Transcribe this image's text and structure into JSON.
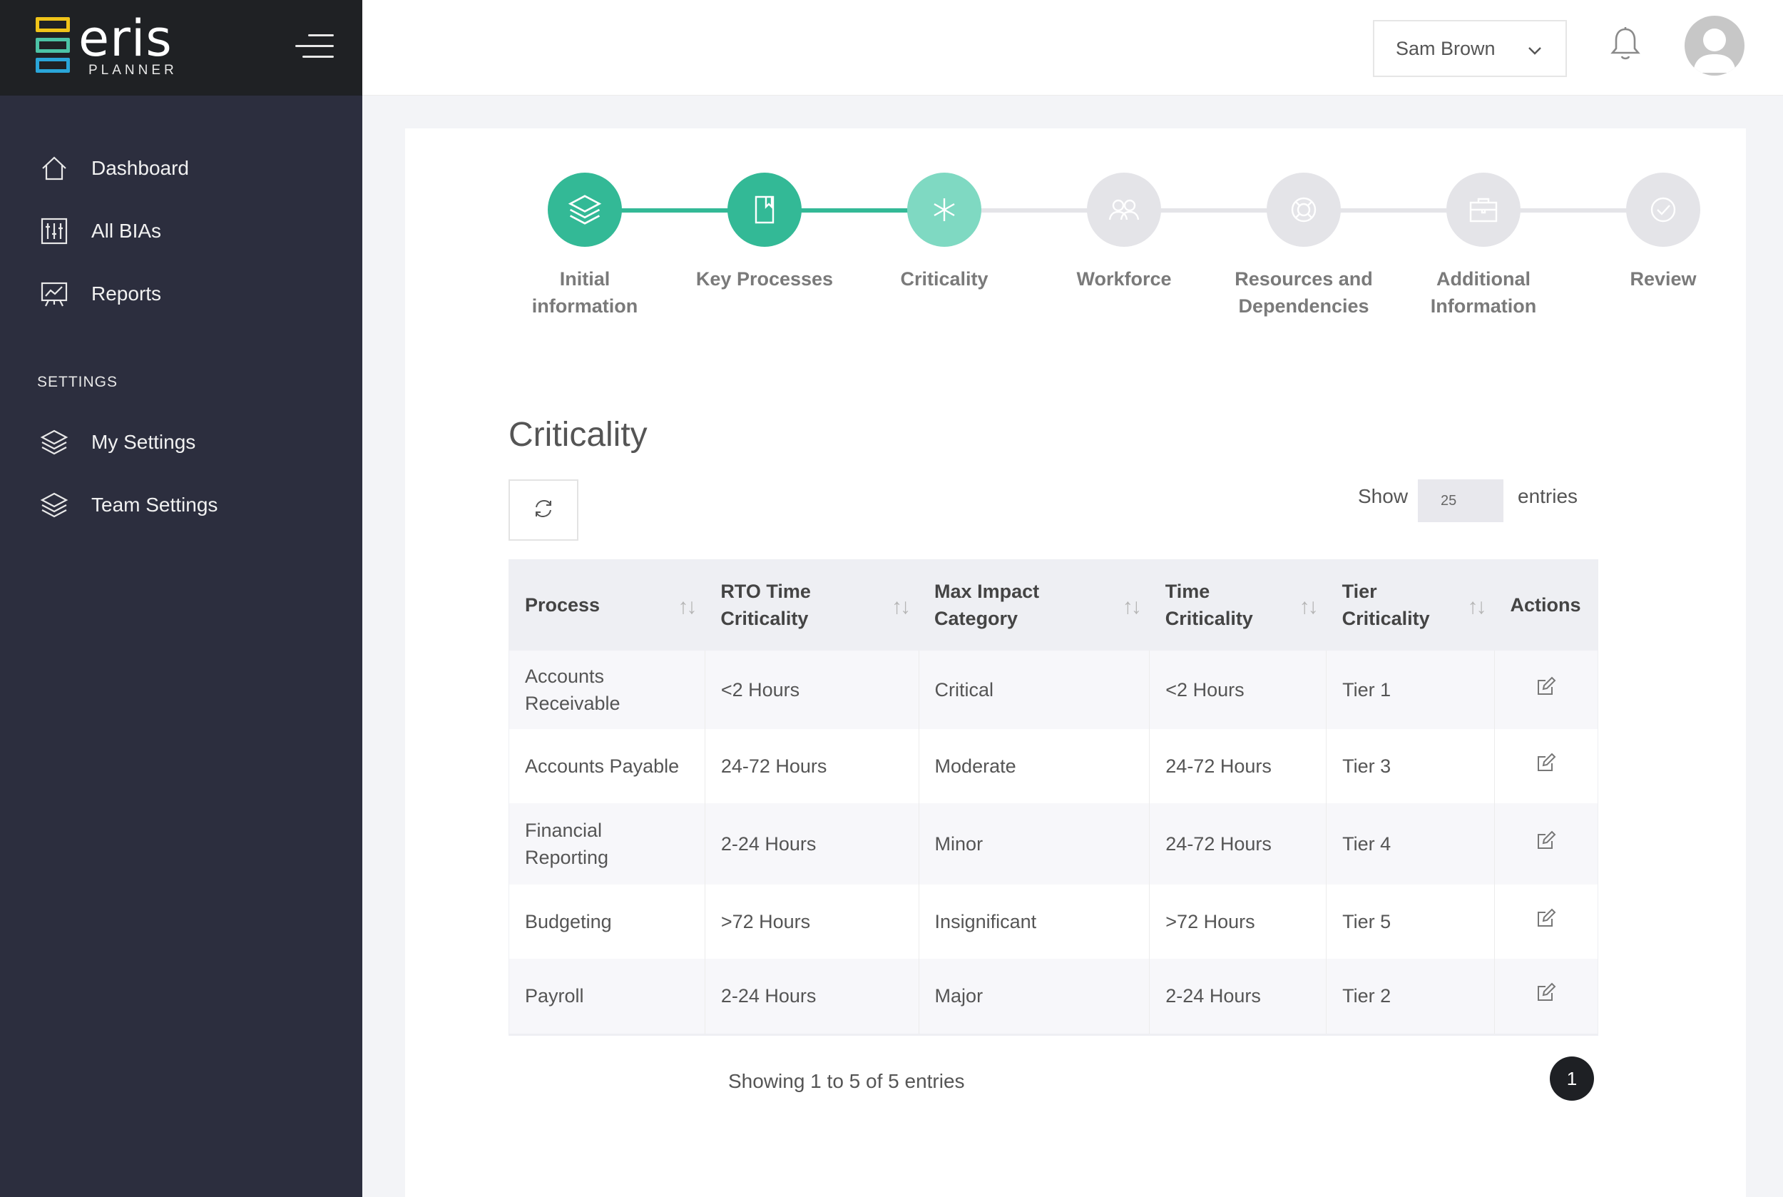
{
  "brand": {
    "name": "eris",
    "sub": "PLANNER"
  },
  "sidebar": {
    "items": [
      {
        "label": "Dashboard",
        "icon": "home-icon"
      },
      {
        "label": "All BIAs",
        "icon": "sliders-icon"
      },
      {
        "label": "Reports",
        "icon": "chart-board-icon"
      }
    ],
    "settings_heading": "SETTINGS",
    "settings_items": [
      {
        "label": "My Settings",
        "icon": "layers-icon"
      },
      {
        "label": "Team Settings",
        "icon": "layers-icon"
      }
    ]
  },
  "header": {
    "user_name": "Sam Brown"
  },
  "stepper": {
    "steps": [
      {
        "label_l1": "Initial",
        "label_l2": "information",
        "state": "done",
        "icon": "layers-icon"
      },
      {
        "label_l1": "Key Processes",
        "label_l2": "",
        "state": "done",
        "icon": "document-icon"
      },
      {
        "label_l1": "Criticality",
        "label_l2": "",
        "state": "active",
        "icon": "asterisk-icon"
      },
      {
        "label_l1": "Workforce",
        "label_l2": "",
        "state": "todo",
        "icon": "users-icon"
      },
      {
        "label_l1": "Resources and",
        "label_l2": "Dependencies",
        "state": "todo",
        "icon": "lifebuoy-icon"
      },
      {
        "label_l1": "Additional",
        "label_l2": "Information",
        "state": "todo",
        "icon": "briefcase-icon"
      },
      {
        "label_l1": "Review",
        "label_l2": "",
        "state": "todo",
        "icon": "check-circle-icon"
      }
    ]
  },
  "main": {
    "title": "Criticality",
    "show_label": "Show",
    "entries_value": "25",
    "entries_label": "entries",
    "table": {
      "headers": [
        {
          "l1": "Process",
          "l2": ""
        },
        {
          "l1": "RTO Time",
          "l2": "Criticality"
        },
        {
          "l1": "Max Impact",
          "l2": "Category"
        },
        {
          "l1": "Time",
          "l2": "Criticality"
        },
        {
          "l1": "Tier",
          "l2": "Criticality"
        },
        {
          "l1": "Actions",
          "l2": ""
        }
      ],
      "rows": [
        {
          "process_l1": "Accounts",
          "process_l2": "Receivable",
          "rto": "<2 Hours",
          "impact": "Critical",
          "time": "<2 Hours",
          "tier": "Tier 1"
        },
        {
          "process_l1": "Accounts Payable",
          "process_l2": "",
          "rto": "24-72 Hours",
          "impact": "Moderate",
          "time": "24-72 Hours",
          "tier": "Tier 3"
        },
        {
          "process_l1": "Financial",
          "process_l2": "Reporting",
          "rto": "2-24 Hours",
          "impact": "Minor",
          "time": "24-72 Hours",
          "tier": "Tier 4"
        },
        {
          "process_l1": "Budgeting",
          "process_l2": "",
          "rto": ">72 Hours",
          "impact": "Insignificant",
          "time": ">72 Hours",
          "tier": "Tier 5"
        },
        {
          "process_l1": "Payroll",
          "process_l2": "",
          "rto": "2-24 Hours",
          "impact": "Major",
          "time": "2-24 Hours",
          "tier": "Tier 2"
        }
      ]
    },
    "info": "Showing 1 to 5 of 5 entries",
    "page": "1"
  },
  "colors": {
    "accent": "#33b996",
    "accent_light": "#7fd9c2",
    "sidebar": "#2c2e3e",
    "sidebar_top": "#1f2124"
  }
}
